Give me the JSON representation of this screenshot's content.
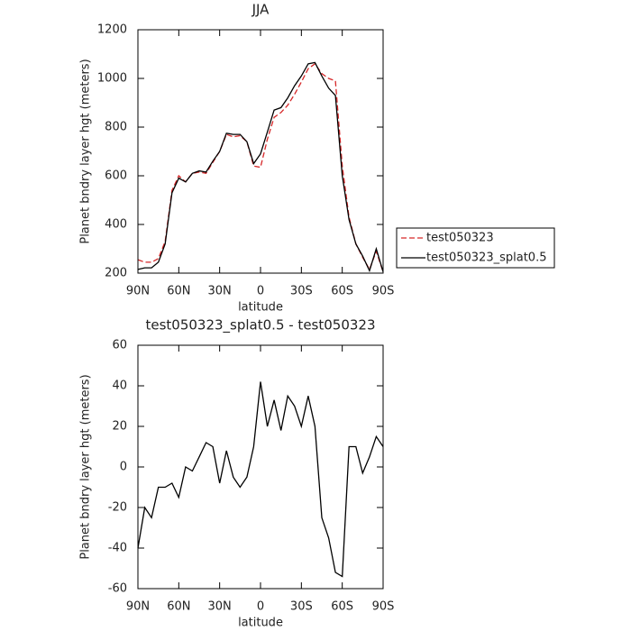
{
  "chart_data": [
    {
      "type": "line",
      "title": "JJA",
      "ylabel": "Planet bndry layer hgt (meters)",
      "xlabel": "latitude",
      "x": [
        90,
        85,
        80,
        75,
        70,
        65,
        60,
        55,
        50,
        45,
        40,
        35,
        30,
        25,
        20,
        15,
        10,
        5,
        0,
        -5,
        -10,
        -15,
        -20,
        -25,
        -30,
        -35,
        -40,
        -45,
        -50,
        -55,
        -60,
        -65,
        -70,
        -75,
        -80,
        -85,
        -90
      ],
      "series": [
        {
          "name": "test050323",
          "color": "#d62728",
          "dash": true,
          "values": [
            255,
            245,
            245,
            260,
            330,
            540,
            600,
            575,
            610,
            615,
            610,
            655,
            700,
            770,
            760,
            765,
            740,
            640,
            635,
            750,
            840,
            860,
            890,
            935,
            985,
            1040,
            1060,
            1020,
            1000,
            990,
            640,
            430,
            320,
            265,
            215,
            290,
            205
          ]
        },
        {
          "name": "test050323_splat0.5",
          "color": "#000000",
          "dash": false,
          "values": [
            215,
            222,
            222,
            245,
            320,
            530,
            590,
            575,
            610,
            620,
            615,
            660,
            700,
            775,
            770,
            770,
            740,
            650,
            690,
            780,
            870,
            880,
            920,
            970,
            1010,
            1060,
            1065,
            1010,
            960,
            930,
            600,
            420,
            320,
            270,
            210,
            300,
            205
          ]
        }
      ],
      "xlim": [
        90,
        -90
      ],
      "xticks": [
        {
          "value": 90,
          "label": "90N"
        },
        {
          "value": 60,
          "label": "60N"
        },
        {
          "value": 30,
          "label": "30N"
        },
        0,
        {
          "value": -30,
          "label": "30S"
        },
        {
          "value": -60,
          "label": "60S"
        },
        {
          "value": -90,
          "label": "90S"
        }
      ],
      "ylim": [
        200,
        1200
      ],
      "yticks": [
        200,
        400,
        600,
        800,
        1000,
        1200
      ],
      "legend": "right"
    },
    {
      "type": "line",
      "title": "test050323_splat0.5 - test050323",
      "ylabel": "Planet bndry layer hgt (meters)",
      "xlabel": "latitude",
      "x": [
        90,
        85,
        80,
        75,
        70,
        65,
        60,
        55,
        50,
        45,
        40,
        35,
        30,
        25,
        20,
        15,
        10,
        5,
        0,
        -5,
        -10,
        -15,
        -20,
        -25,
        -30,
        -35,
        -40,
        -45,
        -50,
        -55,
        -60,
        -65,
        -70,
        -75,
        -80,
        -85,
        -90
      ],
      "series": [
        {
          "color": "#000000",
          "dash": false,
          "values": [
            -40,
            -20,
            -25,
            -10,
            -10,
            -8,
            -15,
            0,
            -2,
            5,
            12,
            10,
            -8,
            8,
            -5,
            -10,
            -5,
            10,
            42,
            20,
            33,
            18,
            35,
            30,
            20,
            35,
            20,
            -25,
            -35,
            -52,
            -54,
            10,
            10,
            -3,
            5,
            15,
            10
          ]
        }
      ],
      "xlim": [
        90,
        -90
      ],
      "xticks": [
        {
          "value": 90,
          "label": "90N"
        },
        {
          "value": 60,
          "label": "60N"
        },
        {
          "value": 30,
          "label": "30N"
        },
        0,
        {
          "value": -30,
          "label": "30S"
        },
        {
          "value": -60,
          "label": "60S"
        },
        {
          "value": -90,
          "label": "90S"
        }
      ],
      "ylim": [
        -60,
        60
      ],
      "yticks": [
        -60,
        -40,
        -20,
        0,
        20,
        40,
        60
      ]
    }
  ]
}
